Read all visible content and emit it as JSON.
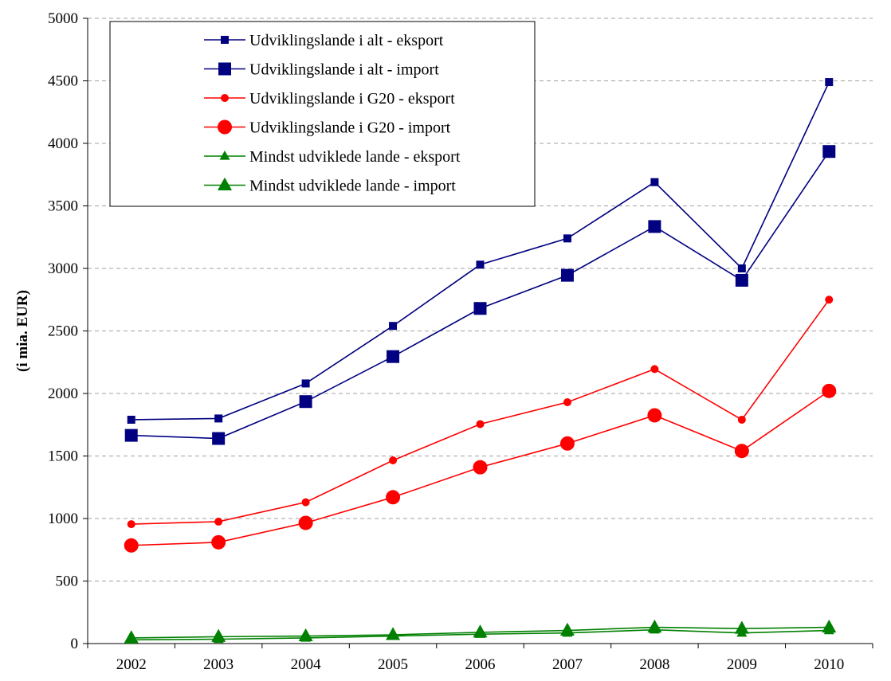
{
  "chart_data": {
    "type": "line",
    "title": "",
    "xlabel": "",
    "ylabel": "(i mia. EUR)",
    "ylim": [
      0,
      5000
    ],
    "yticks": [
      0,
      500,
      1000,
      1500,
      2000,
      2500,
      3000,
      3500,
      4000,
      4500,
      5000
    ],
    "grid": "horizontal dashed",
    "legend_position": "top-left",
    "categories": [
      "2002",
      "2003",
      "2004",
      "2005",
      "2006",
      "2007",
      "2008",
      "2009",
      "2010"
    ],
    "series": [
      {
        "name": "Udviklingslande i alt - eksport",
        "color": "#000080",
        "marker": "square-small",
        "values": [
          1790,
          1800,
          2080,
          2540,
          3030,
          3240,
          3690,
          3000,
          4490
        ]
      },
      {
        "name": "Udviklingslande i alt - import",
        "color": "#000080",
        "marker": "square-large",
        "values": [
          1665,
          1640,
          1935,
          2295,
          2680,
          2945,
          3335,
          2905,
          3935
        ]
      },
      {
        "name": "Udviklingslande i G20 - eksport",
        "color": "#ff0000",
        "marker": "circle-small",
        "values": [
          955,
          975,
          1130,
          1465,
          1755,
          1930,
          2195,
          1790,
          2750
        ]
      },
      {
        "name": "Udviklingslande i G20 - import",
        "color": "#ff0000",
        "marker": "circle-large",
        "values": [
          785,
          810,
          965,
          1170,
          1410,
          1600,
          1825,
          1540,
          2020
        ]
      },
      {
        "name": "Mindst udviklede lande  - eksport",
        "color": "#008000",
        "marker": "triangle-small",
        "values": [
          30,
          35,
          45,
          60,
          75,
          85,
          110,
          85,
          105
        ]
      },
      {
        "name": "Mindst udviklede lande - import",
        "color": "#008000",
        "marker": "triangle-large",
        "values": [
          45,
          55,
          60,
          70,
          90,
          105,
          130,
          120,
          130
        ]
      }
    ]
  }
}
